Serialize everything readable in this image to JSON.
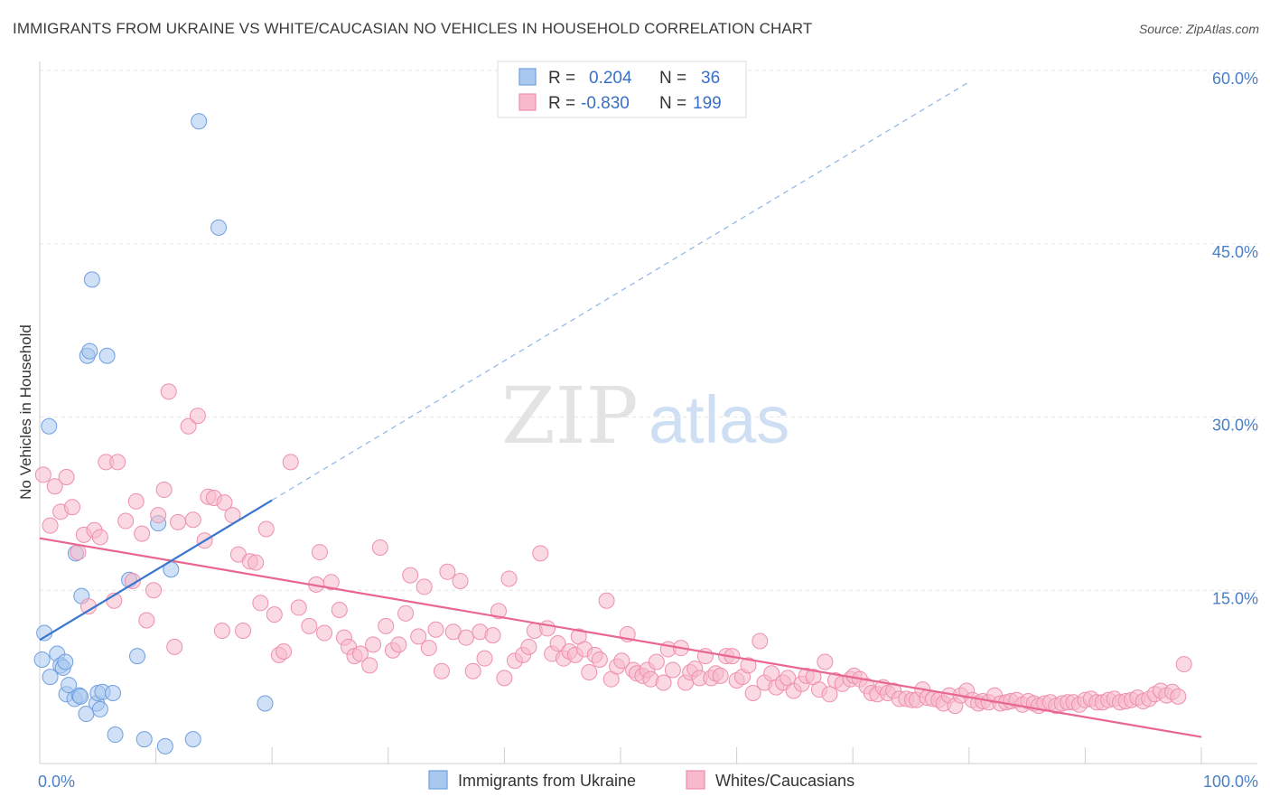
{
  "title": "IMMIGRANTS FROM UKRAINE VS WHITE/CAUCASIAN NO VEHICLES IN HOUSEHOLD CORRELATION CHART",
  "source": "Source: ZipAtlas.com",
  "watermark": {
    "zip": "ZIP",
    "atlas": "atlas"
  },
  "legend": {
    "rows": [
      {
        "r_label": "R =",
        "r_value": "0.204",
        "n_label": "N =",
        "n_value": "36",
        "color": "#a9c8f0"
      },
      {
        "r_label": "R =",
        "r_value": "-0.830",
        "n_label": "N =",
        "n_value": "199",
        "color": "#f7b9cb"
      }
    ]
  },
  "bottom_legend": [
    {
      "label": "Immigrants from Ukraine",
      "color": "#a9c8f0"
    },
    {
      "label": "Whites/Caucasians",
      "color": "#f7b9cb"
    }
  ],
  "chart_data": {
    "type": "scatter",
    "title": "IMMIGRANTS FROM UKRAINE VS WHITE/CAUCASIAN NO VEHICLES IN HOUSEHOLD CORRELATION CHART",
    "ylabel": "No Vehicles in Household",
    "xlabel": "",
    "xlim": [
      0,
      100
    ],
    "ylim": [
      0,
      60
    ],
    "x_tick_labels": [
      "0.0%",
      "100.0%"
    ],
    "y_ticks": [
      15,
      30,
      45,
      60
    ],
    "y_tick_labels": [
      "15.0%",
      "30.0%",
      "45.0%",
      "60.0%"
    ],
    "series": [
      {
        "name": "Immigrants from Ukraine",
        "color": "#a9c8f0",
        "stroke": "#6f9fe0",
        "trend": {
          "x0": 0,
          "y0": 10.7,
          "x1": 20,
          "y1": 22.8,
          "dash_to_x": 80,
          "dash_to_y": 59.0,
          "color": "#3a76d0"
        },
        "points": [
          [
            0.2,
            9.0
          ],
          [
            0.4,
            11.3
          ],
          [
            0.8,
            29.2
          ],
          [
            0.9,
            7.5
          ],
          [
            1.5,
            9.5
          ],
          [
            1.8,
            8.5
          ],
          [
            2.0,
            8.3
          ],
          [
            2.2,
            8.8
          ],
          [
            2.3,
            6.0
          ],
          [
            2.5,
            6.8
          ],
          [
            3.0,
            5.6
          ],
          [
            3.1,
            18.2
          ],
          [
            3.4,
            5.9
          ],
          [
            3.5,
            5.8
          ],
          [
            3.6,
            14.5
          ],
          [
            4.0,
            4.3
          ],
          [
            4.1,
            35.3
          ],
          [
            4.3,
            35.7
          ],
          [
            4.5,
            41.9
          ],
          [
            4.9,
            5.2
          ],
          [
            5.0,
            6.1
          ],
          [
            5.2,
            4.7
          ],
          [
            5.4,
            6.2
          ],
          [
            5.8,
            35.3
          ],
          [
            6.3,
            6.1
          ],
          [
            6.5,
            2.5
          ],
          [
            7.7,
            15.9
          ],
          [
            8.4,
            9.3
          ],
          [
            9.0,
            2.1
          ],
          [
            10.2,
            20.8
          ],
          [
            10.8,
            1.5
          ],
          [
            11.3,
            16.8
          ],
          [
            13.2,
            2.1
          ],
          [
            13.7,
            55.6
          ],
          [
            15.4,
            46.4
          ],
          [
            19.4,
            5.2
          ]
        ]
      },
      {
        "name": "Whites/Caucasians",
        "color": "#f7b9cb",
        "stroke": "#ee8fae",
        "trend": {
          "x0": 0,
          "y0": 19.5,
          "x1": 100,
          "y1": 2.3,
          "color": "#e8668f"
        },
        "points": [
          [
            0.3,
            25.0
          ],
          [
            0.9,
            20.6
          ],
          [
            1.3,
            24.0
          ],
          [
            1.8,
            21.8
          ],
          [
            2.3,
            24.8
          ],
          [
            2.8,
            22.2
          ],
          [
            3.3,
            18.3
          ],
          [
            3.8,
            19.8
          ],
          [
            4.2,
            13.6
          ],
          [
            4.7,
            20.2
          ],
          [
            5.2,
            19.6
          ],
          [
            5.7,
            26.1
          ],
          [
            6.4,
            14.1
          ],
          [
            6.7,
            26.1
          ],
          [
            7.4,
            21.0
          ],
          [
            8.0,
            15.8
          ],
          [
            8.3,
            22.7
          ],
          [
            8.8,
            19.9
          ],
          [
            9.2,
            12.4
          ],
          [
            9.8,
            15.0
          ],
          [
            10.2,
            21.5
          ],
          [
            10.7,
            23.7
          ],
          [
            11.1,
            32.2
          ],
          [
            11.6,
            10.1
          ],
          [
            11.9,
            20.9
          ],
          [
            12.8,
            29.2
          ],
          [
            13.2,
            21.1
          ],
          [
            13.6,
            30.1
          ],
          [
            14.2,
            19.3
          ],
          [
            14.5,
            23.1
          ],
          [
            15.0,
            23.0
          ],
          [
            15.7,
            11.5
          ],
          [
            15.9,
            22.6
          ],
          [
            16.6,
            21.5
          ],
          [
            17.1,
            18.1
          ],
          [
            17.5,
            11.5
          ],
          [
            18.1,
            17.5
          ],
          [
            18.6,
            17.4
          ],
          [
            19.0,
            13.9
          ],
          [
            19.5,
            20.3
          ],
          [
            20.2,
            12.9
          ],
          [
            20.6,
            9.4
          ],
          [
            21.0,
            9.7
          ],
          [
            21.6,
            26.1
          ],
          [
            22.3,
            13.5
          ],
          [
            23.2,
            11.9
          ],
          [
            23.8,
            15.5
          ],
          [
            24.1,
            18.3
          ],
          [
            24.5,
            11.3
          ],
          [
            25.1,
            15.7
          ],
          [
            25.8,
            13.3
          ],
          [
            26.2,
            10.9
          ],
          [
            26.6,
            10.1
          ],
          [
            27.1,
            9.3
          ],
          [
            27.6,
            9.5
          ],
          [
            28.4,
            8.5
          ],
          [
            28.7,
            10.3
          ],
          [
            29.3,
            18.7
          ],
          [
            29.8,
            11.9
          ],
          [
            30.4,
            9.8
          ],
          [
            30.9,
            10.3
          ],
          [
            31.5,
            13.0
          ],
          [
            31.9,
            16.3
          ],
          [
            32.6,
            11.0
          ],
          [
            33.1,
            15.3
          ],
          [
            33.5,
            10.0
          ],
          [
            34.1,
            11.6
          ],
          [
            34.6,
            8.0
          ],
          [
            35.1,
            16.6
          ],
          [
            35.6,
            11.4
          ],
          [
            36.2,
            15.8
          ],
          [
            36.7,
            10.9
          ],
          [
            37.3,
            8.0
          ],
          [
            37.9,
            11.4
          ],
          [
            38.3,
            9.1
          ],
          [
            39.0,
            11.1
          ],
          [
            39.5,
            13.2
          ],
          [
            40.0,
            7.4
          ],
          [
            40.4,
            16.0
          ],
          [
            40.9,
            8.9
          ],
          [
            41.6,
            9.4
          ],
          [
            42.1,
            10.1
          ],
          [
            42.6,
            11.5
          ],
          [
            43.1,
            18.2
          ],
          [
            43.7,
            11.7
          ],
          [
            44.1,
            9.5
          ],
          [
            44.6,
            10.4
          ],
          [
            45.1,
            9.1
          ],
          [
            45.6,
            9.7
          ],
          [
            46.1,
            9.4
          ],
          [
            46.4,
            11.0
          ],
          [
            46.9,
            9.9
          ],
          [
            47.3,
            7.9
          ],
          [
            47.8,
            9.4
          ],
          [
            48.2,
            9.0
          ],
          [
            48.8,
            14.1
          ],
          [
            49.2,
            7.3
          ],
          [
            49.7,
            8.4
          ],
          [
            50.1,
            8.9
          ],
          [
            50.6,
            11.2
          ],
          [
            51.1,
            8.1
          ],
          [
            51.4,
            7.8
          ],
          [
            51.9,
            7.6
          ],
          [
            52.3,
            8.1
          ],
          [
            52.6,
            7.3
          ],
          [
            53.1,
            8.8
          ],
          [
            53.7,
            7.0
          ],
          [
            54.1,
            9.9
          ],
          [
            54.5,
            8.1
          ],
          [
            55.2,
            10.0
          ],
          [
            55.6,
            7.0
          ],
          [
            56.0,
            7.9
          ],
          [
            56.4,
            8.2
          ],
          [
            56.8,
            7.4
          ],
          [
            57.3,
            9.3
          ],
          [
            57.8,
            7.4
          ],
          [
            58.2,
            7.8
          ],
          [
            58.6,
            7.6
          ],
          [
            59.1,
            9.3
          ],
          [
            59.6,
            9.3
          ],
          [
            60.0,
            7.2
          ],
          [
            60.5,
            7.5
          ],
          [
            61.0,
            8.5
          ],
          [
            61.4,
            6.1
          ],
          [
            62.0,
            10.6
          ],
          [
            62.4,
            7.0
          ],
          [
            63.0,
            7.8
          ],
          [
            63.4,
            6.6
          ],
          [
            64.0,
            7.0
          ],
          [
            64.4,
            7.4
          ],
          [
            64.9,
            6.3
          ],
          [
            65.6,
            6.9
          ],
          [
            66.0,
            7.6
          ],
          [
            66.6,
            7.5
          ],
          [
            67.1,
            6.4
          ],
          [
            67.6,
            8.8
          ],
          [
            68.0,
            6.0
          ],
          [
            68.5,
            7.2
          ],
          [
            69.1,
            6.9
          ],
          [
            69.8,
            7.3
          ],
          [
            70.1,
            7.6
          ],
          [
            70.6,
            7.3
          ],
          [
            71.2,
            6.7
          ],
          [
            71.6,
            6.1
          ],
          [
            72.1,
            6.0
          ],
          [
            72.6,
            6.6
          ],
          [
            73.0,
            6.1
          ],
          [
            73.5,
            6.3
          ],
          [
            74.0,
            5.6
          ],
          [
            74.6,
            5.6
          ],
          [
            75.1,
            5.5
          ],
          [
            75.5,
            5.5
          ],
          [
            76.0,
            6.4
          ],
          [
            76.4,
            5.7
          ],
          [
            76.9,
            5.6
          ],
          [
            77.4,
            5.5
          ],
          [
            77.8,
            5.2
          ],
          [
            78.3,
            5.9
          ],
          [
            78.8,
            5.0
          ],
          [
            79.3,
            5.9
          ],
          [
            79.8,
            6.3
          ],
          [
            80.3,
            5.5
          ],
          [
            80.8,
            5.2
          ],
          [
            81.2,
            5.4
          ],
          [
            81.7,
            5.3
          ],
          [
            82.2,
            5.9
          ],
          [
            82.7,
            5.2
          ],
          [
            83.2,
            5.3
          ],
          [
            83.6,
            5.4
          ],
          [
            84.1,
            5.5
          ],
          [
            84.6,
            5.1
          ],
          [
            85.1,
            5.4
          ],
          [
            85.6,
            5.2
          ],
          [
            86.0,
            5.0
          ],
          [
            86.5,
            5.2
          ],
          [
            87.0,
            5.3
          ],
          [
            87.5,
            5.0
          ],
          [
            88.0,
            5.2
          ],
          [
            88.5,
            5.3
          ],
          [
            89.0,
            5.3
          ],
          [
            89.5,
            5.1
          ],
          [
            90.0,
            5.5
          ],
          [
            90.5,
            5.6
          ],
          [
            91.0,
            5.3
          ],
          [
            91.5,
            5.3
          ],
          [
            92.0,
            5.5
          ],
          [
            92.5,
            5.6
          ],
          [
            93.0,
            5.3
          ],
          [
            93.5,
            5.4
          ],
          [
            94.0,
            5.5
          ],
          [
            94.5,
            5.7
          ],
          [
            95.0,
            5.4
          ],
          [
            95.5,
            5.6
          ],
          [
            96.0,
            6.0
          ],
          [
            96.5,
            6.3
          ],
          [
            97.0,
            5.9
          ],
          [
            97.5,
            6.2
          ],
          [
            98.0,
            5.8
          ],
          [
            98.5,
            8.6
          ]
        ]
      }
    ]
  }
}
